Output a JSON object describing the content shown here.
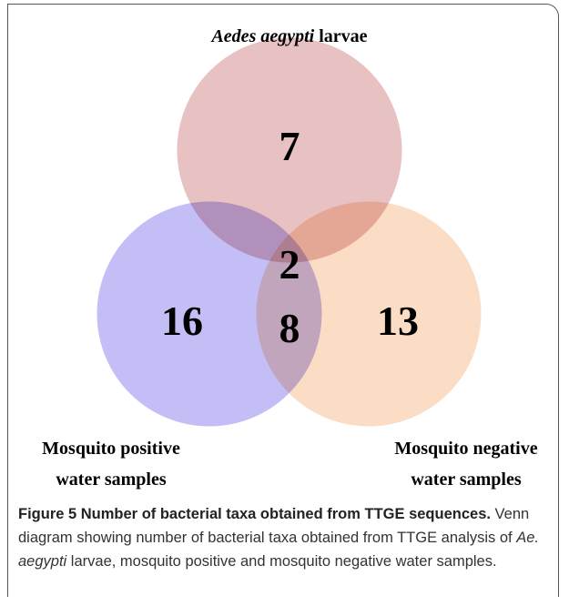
{
  "figure": {
    "sets": [
      {
        "label_italic": "Aedes aegypti",
        "label_rest": " larvae"
      },
      {
        "label_lines": [
          "Mosquito positive",
          "water samples"
        ]
      },
      {
        "label_lines": [
          "Mosquito negative",
          "water samples"
        ]
      }
    ],
    "regions": {
      "larvae_only": 7,
      "positive_only": 16,
      "negative_only": 13,
      "all_three": 2,
      "positive_negative": 8
    },
    "caption": {
      "title": "Figure 5 Number of bacterial taxa obtained from TTGE sequences.",
      "text_before": "Venn diagram showing number of bacterial taxa obtained from TTGE analysis of ",
      "species": "Ae. aegypti",
      "text_after": " larvae, mosquito positive and mosquito negative water samples."
    }
  }
}
